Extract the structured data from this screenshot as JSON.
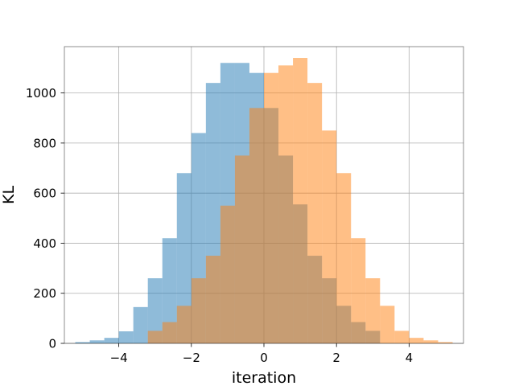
{
  "chart_data": {
    "type": "bar",
    "subtype": "overlapping-histogram",
    "title": "",
    "xlabel": "iteration",
    "ylabel": "KL",
    "xlim": [
      -5.5,
      5.5
    ],
    "ylim": [
      0,
      1185
    ],
    "grid": true,
    "legend": "none",
    "xticks": [
      -4,
      -2,
      0,
      2,
      4
    ],
    "xtick_labels": [
      "−4",
      "−2",
      "0",
      "2",
      "4"
    ],
    "yticks": [
      0,
      200,
      400,
      600,
      800,
      1000
    ],
    "ytick_labels": [
      "0",
      "200",
      "400",
      "600",
      "800",
      "1000"
    ],
    "series": [
      {
        "color": "#1f77b4",
        "opacity": 0.5,
        "bin_edges": [
          -5.2,
          -4.8,
          -4.4,
          -4.0,
          -3.6,
          -3.2,
          -2.8,
          -2.4,
          -2.0,
          -1.6,
          -1.2,
          -0.8,
          -0.4,
          0.0,
          0.4,
          0.8,
          1.2,
          1.6,
          2.0,
          2.4,
          2.8,
          3.2
        ],
        "counts": [
          5,
          12,
          22,
          48,
          145,
          260,
          420,
          680,
          840,
          1040,
          1120,
          1120,
          1080,
          940,
          750,
          555,
          350,
          260,
          150,
          85,
          50
        ]
      },
      {
        "color": "#ff7f0e",
        "opacity": 0.5,
        "bin_edges": [
          -3.2,
          -2.8,
          -2.4,
          -2.0,
          -1.6,
          -1.2,
          -0.8,
          -0.4,
          0.0,
          0.4,
          0.8,
          1.2,
          1.6,
          2.0,
          2.4,
          2.8,
          3.2,
          3.6,
          4.0,
          4.4,
          4.8,
          5.2
        ],
        "counts": [
          50,
          85,
          150,
          260,
          350,
          550,
          750,
          940,
          1080,
          1110,
          1140,
          1040,
          850,
          680,
          420,
          260,
          150,
          50,
          22,
          12,
          5
        ]
      }
    ]
  }
}
